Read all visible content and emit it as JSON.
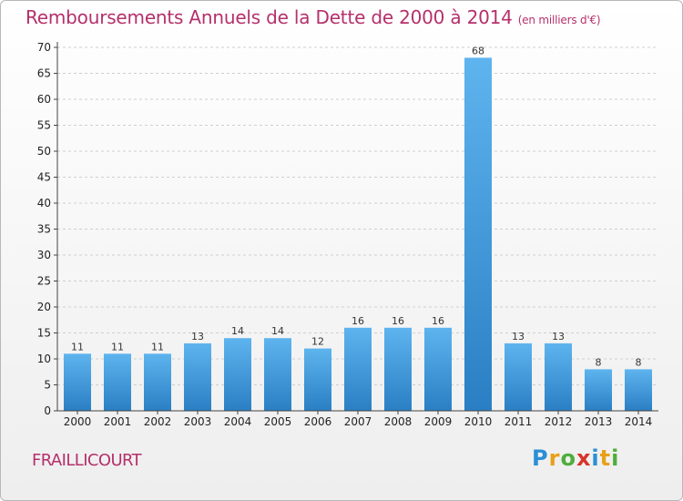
{
  "title": "Remboursements Annuels de la Dette de 2000 à 2014",
  "unit": "(en milliers d'€)",
  "commune": "FRAILLICOURT",
  "logo": {
    "letters": [
      "P",
      "r",
      "o",
      "x",
      "i",
      "t",
      "i"
    ],
    "colors": [
      "#2a8fd6",
      "#e8a019",
      "#4eae3c",
      "#d8332a",
      "#2a8fd6",
      "#e8a019",
      "#4eae3c"
    ]
  },
  "chart_data": {
    "type": "bar",
    "title": "Remboursements Annuels de la Dette de 2000 à 2014",
    "xlabel": "",
    "ylabel": "",
    "categories": [
      "2000",
      "2001",
      "2002",
      "2003",
      "2004",
      "2005",
      "2006",
      "2007",
      "2008",
      "2009",
      "2010",
      "2011",
      "2012",
      "2013",
      "2014"
    ],
    "values": [
      11,
      11,
      11,
      13,
      14,
      14,
      12,
      16,
      16,
      16,
      68,
      13,
      13,
      8,
      8
    ],
    "ylim": [
      0,
      70
    ],
    "yticks": [
      0,
      5,
      10,
      15,
      20,
      25,
      30,
      35,
      40,
      45,
      50,
      55,
      60,
      65,
      70
    ],
    "grid": true,
    "bar_color": "#3a96dc"
  }
}
